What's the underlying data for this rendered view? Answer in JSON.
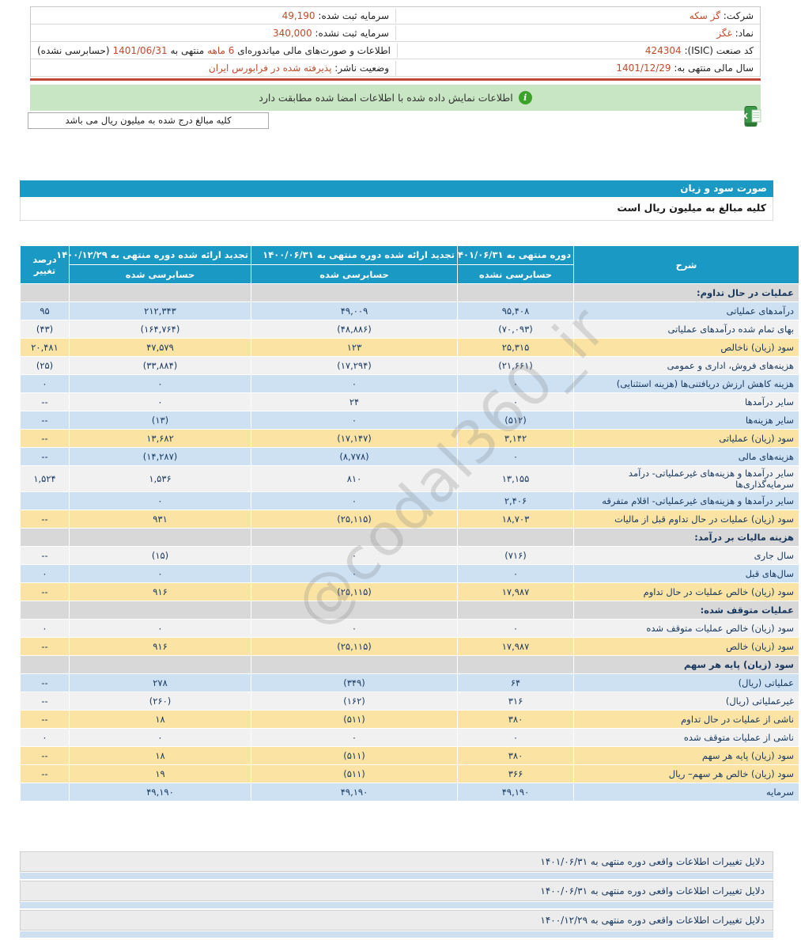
{
  "colors": {
    "accent_teal": "#1999c4",
    "row_blue": "#cde1f3",
    "row_yellow": "#fbe3a3",
    "row_section": "#d8d8d8",
    "negative_red": "#cc0000",
    "value_brick": "#bf4b28",
    "signature_green_bg": "#c9e6c4",
    "info_icon_green": "#3ba32a",
    "red_divider": "#c1473a"
  },
  "top_info": {
    "right": [
      {
        "label": "شرکت:",
        "value": "گز سکه"
      },
      {
        "label": "نماد:",
        "value": "غگز"
      },
      {
        "label": "کد صنعت (ISIC):",
        "value": "424304"
      },
      {
        "label": "سال مالی منتهی به:",
        "value": "1401/12/29"
      }
    ],
    "left": [
      {
        "label": "سرمایه ثبت شده:",
        "value": "49,190"
      },
      {
        "label": "سرمایه ثبت نشده:",
        "value": "340,000"
      },
      {
        "parts": {
          "p1": "اطلاعات و صورت‌های مالی میاندوره‌ای",
          "p2": "6 ماهه",
          "p3": "منتهی به",
          "p4": "1401/06/31",
          "p5": "(حسابرسی نشده)"
        }
      },
      {
        "label": "وضعیت ناشر:",
        "value": "پذیرفته شده در فرابورس ایران"
      }
    ]
  },
  "signature_bar": {
    "text": "اطلاعات نمایش داده شده با اطلاعات امضا شده مطابقت دارد",
    "icon": "i"
  },
  "unit_note": "کلیه مبالغ درج شده به میلیون ریال می باشد",
  "statement": {
    "title": "صورت سود و زیان",
    "note": "کلیه مبالغ به میلیون ریال است"
  },
  "table": {
    "desc_header": "شرح",
    "pct_header": "درصد تغییر",
    "columns": [
      {
        "period": "دوره منتهی به ۱۴۰۱/۰۶/۳۱",
        "audit": "حسابرسی نشده"
      },
      {
        "period": "تجدید ارائه شده دوره منتهی به ۱۴۰۰/۰۶/۳۱",
        "audit": "حسابرسی شده"
      },
      {
        "period": "تجدید ارائه شده دوره منتهی به ۱۴۰۰/۱۲/۲۹",
        "audit": "حسابرسی شده"
      }
    ],
    "rows": [
      {
        "type": "section",
        "label": "عملیات در حال تداوم:"
      },
      {
        "type": "data",
        "bg": "blue",
        "label": "درآمدهای عملیاتی",
        "v1": "۹۵,۴۰۸",
        "v2": "۴۹,۰۰۹",
        "v3": "۲۱۲,۳۴۳",
        "pct": "۹۵"
      },
      {
        "type": "data",
        "bg": "white",
        "label": "بهای تمام شده درآمدهای عملیاتی",
        "v1": "(۷۰,۰۹۳)",
        "v2": "(۴۸,۸۸۶)",
        "v3": "(۱۶۴,۷۶۴)",
        "pct": "(۴۳)"
      },
      {
        "type": "data",
        "bg": "yellow",
        "label": "سود (زیان) ناخالص",
        "v1": "۲۵,۳۱۵",
        "v2": "۱۲۳",
        "v3": "۴۷,۵۷۹",
        "pct": "۲۰,۴۸۱"
      },
      {
        "type": "data",
        "bg": "white",
        "label": "هزینه‌های فروش، اداری و عمومی",
        "v1": "(۲۱,۶۶۱)",
        "v2": "(۱۷,۲۹۴)",
        "v3": "(۳۳,۸۸۴)",
        "pct": "(۲۵)"
      },
      {
        "type": "data",
        "bg": "blue",
        "label": "هزینه کاهش ارزش دریافتنی‌ها (هزینه استثنایی)",
        "v1": "۰",
        "v2": "۰",
        "v3": "۰",
        "pct": "۰"
      },
      {
        "type": "data",
        "bg": "white",
        "label": "سایر درآمدها",
        "v1": "۰",
        "v2": "۲۴",
        "v3": "۰",
        "pct": "--"
      },
      {
        "type": "data",
        "bg": "blue",
        "label": "سایر هزینه‌ها",
        "v1": "(۵۱۲)",
        "v2": "۰",
        "v3": "(۱۳)",
        "pct": "--"
      },
      {
        "type": "data",
        "bg": "yellow",
        "label": "سود (زیان) عملیاتی",
        "v1": "۳,۱۴۲",
        "v2": "(۱۷,۱۴۷)",
        "v3": "۱۳,۶۸۲",
        "pct": "--"
      },
      {
        "type": "data",
        "bg": "blue",
        "label": "هزینه‌های مالی",
        "v1": "۰",
        "v2": "(۸,۷۷۸)",
        "v3": "(۱۴,۲۸۷)",
        "pct": "--"
      },
      {
        "type": "data",
        "bg": "white",
        "label": "سایر درآمدها و هزینه‌های غیرعملیاتی- درآمد سرمایه‌گذاری‌ها",
        "v1": "۱۳,۱۵۵",
        "v2": "۸۱۰",
        "v3": "۱,۵۳۶",
        "pct": "۱,۵۲۴"
      },
      {
        "type": "data",
        "bg": "blue",
        "label": "سایر درآمدها و هزینه‌های غیرعملیاتی- اقلام متفرقه",
        "v1": "۲,۴۰۶",
        "v2": "۰",
        "v3": "۰",
        "pct": ""
      },
      {
        "type": "data",
        "bg": "yellow",
        "label": "سود (زیان) عملیات در حال تداوم قبل از مالیات",
        "v1": "۱۸,۷۰۳",
        "v2": "(۲۵,۱۱۵)",
        "v3": "۹۳۱",
        "pct": "--"
      },
      {
        "type": "section",
        "label": "هزینه مالیات بر درآمد:"
      },
      {
        "type": "data",
        "bg": "white",
        "label": "سال جاری",
        "v1": "(۷۱۶)",
        "v2": "۰",
        "v3": "(۱۵)",
        "pct": "--"
      },
      {
        "type": "data",
        "bg": "blue",
        "label": "سال‌های قبل",
        "v1": "۰",
        "v2": "۰",
        "v3": "۰",
        "pct": "۰"
      },
      {
        "type": "data",
        "bg": "yellow",
        "label": "سود (زیان) خالص عملیات در حال تداوم",
        "v1": "۱۷,۹۸۷",
        "v2": "(۲۵,۱۱۵)",
        "v3": "۹۱۶",
        "pct": "--"
      },
      {
        "type": "section",
        "label": "عملیات متوقف شده:"
      },
      {
        "type": "data",
        "bg": "white",
        "label": "سود (زیان) خالص عملیات متوقف شده",
        "v1": "۰",
        "v2": "۰",
        "v3": "۰",
        "pct": "۰"
      },
      {
        "type": "data",
        "bg": "yellow",
        "label": "سود (زیان) خالص",
        "v1": "۱۷,۹۸۷",
        "v2": "(۲۵,۱۱۵)",
        "v3": "۹۱۶",
        "pct": "--"
      },
      {
        "type": "section",
        "label": "سود (زیان) پایه هر سهم"
      },
      {
        "type": "data",
        "bg": "blue",
        "label": "عملیاتی (ریال)",
        "v1": "۶۴",
        "v2": "(۳۴۹)",
        "v3": "۲۷۸",
        "pct": "--"
      },
      {
        "type": "data",
        "bg": "white",
        "label": "غیرعملیاتی (ریال)",
        "v1": "۳۱۶",
        "v2": "(۱۶۲)",
        "v3": "(۲۶۰)",
        "pct": "--"
      },
      {
        "type": "data",
        "bg": "yellow",
        "label": "ناشی از عملیات در حال تداوم",
        "v1": "۳۸۰",
        "v2": "(۵۱۱)",
        "v3": "۱۸",
        "pct": "--"
      },
      {
        "type": "data",
        "bg": "white",
        "label": "ناشی از عملیات متوقف شده",
        "v1": "۰",
        "v2": "۰",
        "v3": "۰",
        "pct": "۰"
      },
      {
        "type": "data",
        "bg": "yellow",
        "label": "سود (زیان) پایه هر سهم",
        "v1": "۳۸۰",
        "v2": "(۵۱۱)",
        "v3": "۱۸",
        "pct": "--"
      },
      {
        "type": "data",
        "bg": "yellow",
        "label": "سود (زیان) خالص هر سهم– ریال",
        "v1": "۳۶۶",
        "v2": "(۵۱۱)",
        "v3": "۱۹",
        "pct": "--"
      },
      {
        "type": "data",
        "bg": "blue",
        "label": "سرمایه",
        "v1": "۴۹,۱۹۰",
        "v2": "۴۹,۱۹۰",
        "v3": "۴۹,۱۹۰",
        "pct": ""
      }
    ]
  },
  "watermark": "@codal360_ir",
  "footer_links": [
    "دلایل تغییرات اطلاعات واقعی دوره منتهی به ۱۴۰۱/۰۶/۳۱",
    "دلایل تغییرات اطلاعات واقعی دوره منتهی به ۱۴۰۰/۰۶/۳۱",
    "دلایل تغییرات اطلاعات واقعی دوره منتهی به ۱۴۰۰/۱۲/۲۹"
  ]
}
